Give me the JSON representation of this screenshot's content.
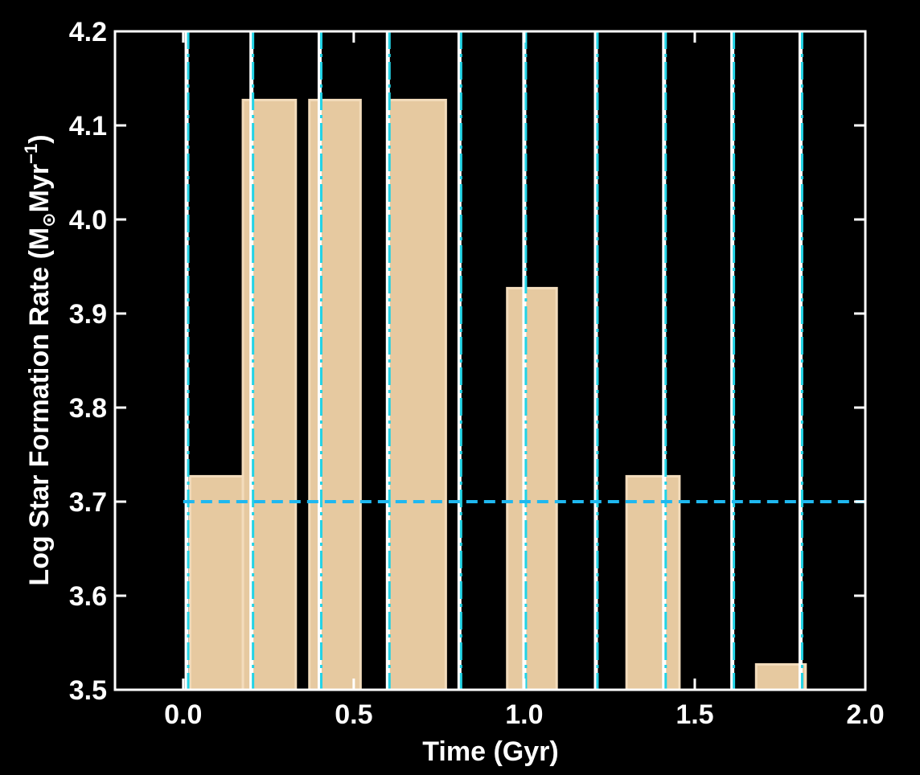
{
  "chart_data": {
    "type": "bar",
    "title": "",
    "xlabel": "Time (Gyr)",
    "ylabel": "Log Star Formation Rate (M",
    "ylabel_sub": "⊙",
    "ylabel_unit": "Myr",
    "ylabel_sup": "−1",
    "ylabel_close": ")",
    "xlim": [
      -0.2,
      2.0
    ],
    "ylim": [
      3.5,
      4.2
    ],
    "xticks": [
      0.0,
      0.5,
      1.0,
      1.5,
      2.0
    ],
    "xtick_labels": [
      "0.0",
      "0.5",
      "1.0",
      "1.5",
      "2.0"
    ],
    "yticks": [
      3.5,
      3.6,
      3.7,
      3.8,
      3.9,
      4.0,
      4.1,
      4.2
    ],
    "ytick_labels": [
      "3.5",
      "3.6",
      "3.7",
      "3.8",
      "3.9",
      "4.0",
      "4.1",
      "4.2"
    ],
    "bars": [
      {
        "x0": 0.02,
        "x1": 0.175,
        "value": 3.727
      },
      {
        "x0": 0.175,
        "x1": 0.33,
        "value": 4.127
      },
      {
        "x0": 0.37,
        "x1": 0.52,
        "value": 4.127
      },
      {
        "x0": 0.6,
        "x1": 0.77,
        "value": 4.127
      },
      {
        "x0": 0.95,
        "x1": 1.095,
        "value": 3.927
      },
      {
        "x0": 1.3,
        "x1": 1.455,
        "value": 3.727
      },
      {
        "x0": 1.68,
        "x1": 1.825,
        "value": 3.527
      }
    ],
    "vertical_lines": [
      0.01,
      0.2,
      0.4,
      0.6,
      0.81,
      1.0,
      1.21,
      1.41,
      1.61,
      1.81
    ],
    "reference_line_y": 3.7,
    "grid": false,
    "colors": {
      "background": "#000000",
      "bar_fill": "#e6c9a0",
      "bar_edge": "#f3dcbc",
      "vertical_line_outer": "#ffffff",
      "vertical_line_inner": "#22d3e6",
      "reference_line": "#1fb8f0",
      "axes": "#ffffff"
    }
  }
}
